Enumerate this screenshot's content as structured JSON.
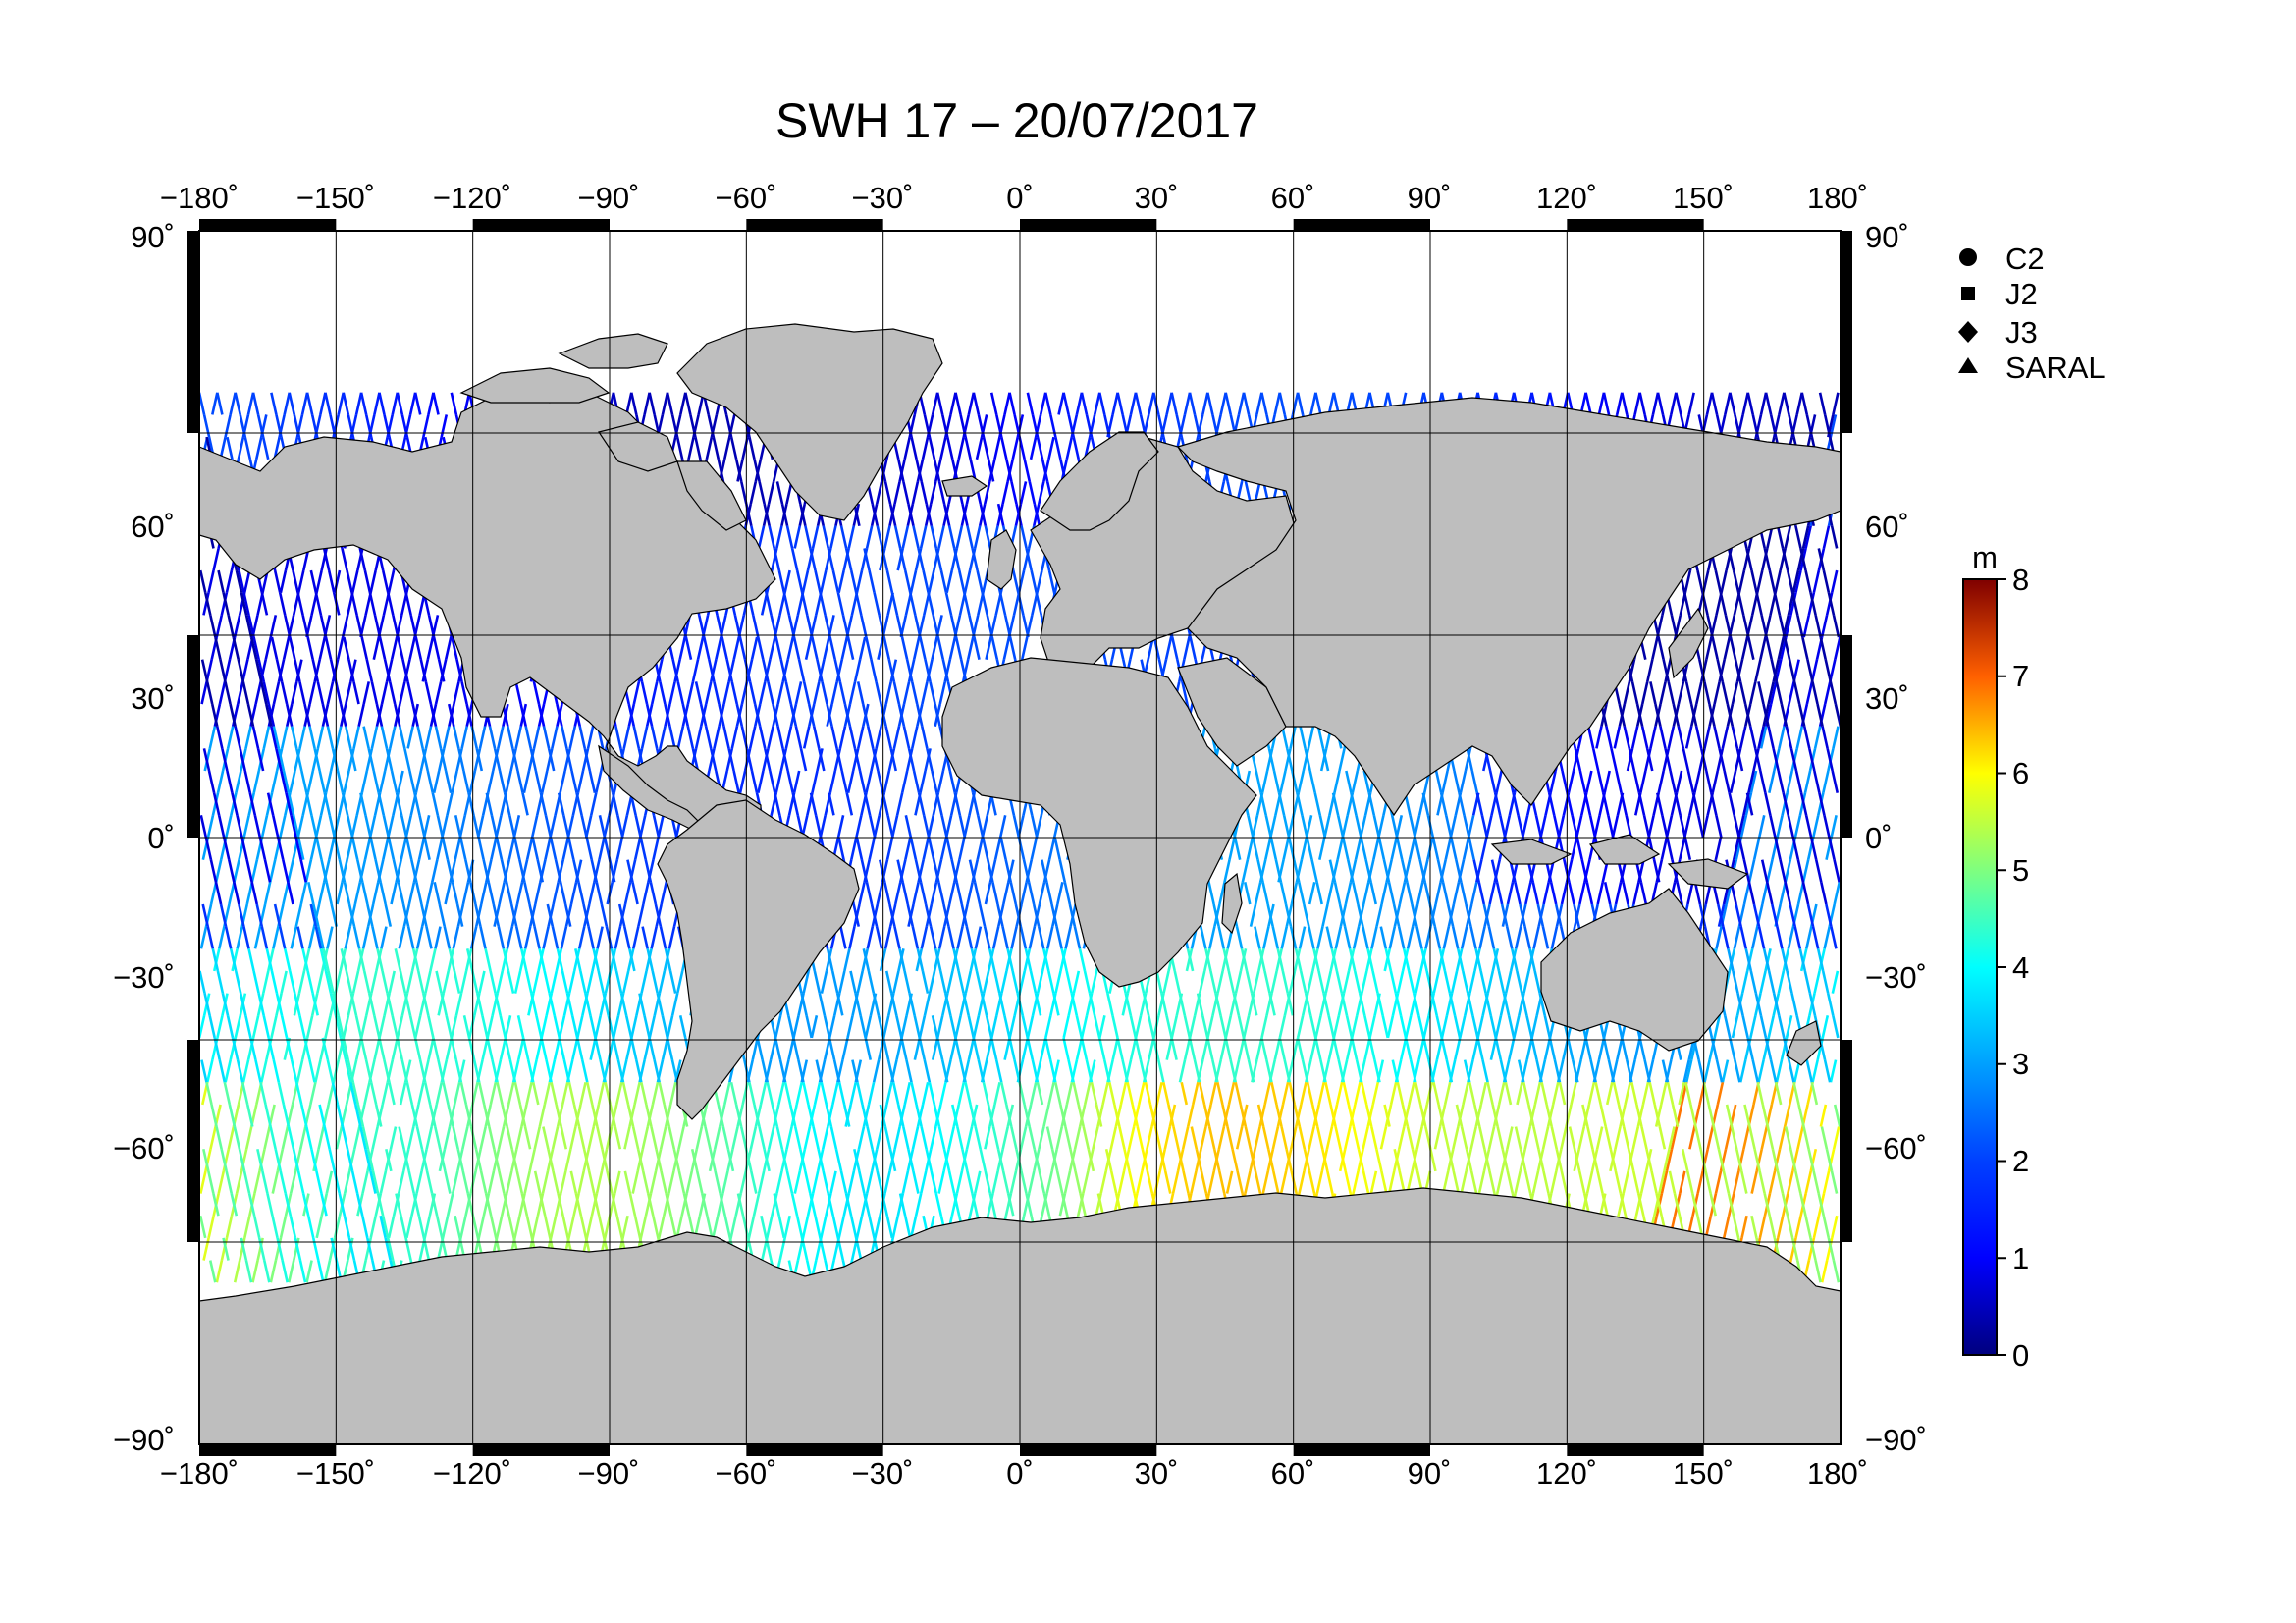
{
  "title": "SWH 17 – 20/07/2017",
  "map": {
    "lon_ticks": [
      "−180˚",
      "−150˚",
      "−120˚",
      "−90˚",
      "−60˚",
      "−30˚",
      "0˚",
      "30˚",
      "60˚",
      "90˚",
      "120˚",
      "150˚",
      "180˚"
    ],
    "lat_ticks": [
      "90˚",
      "60˚",
      "30˚",
      "0˚",
      "−30˚",
      "−60˚",
      "−90˚"
    ],
    "lon_range": [
      -180,
      180
    ],
    "lat_range": [
      -90,
      90
    ],
    "grid": true,
    "land_color": "#bebebe",
    "ocean_color": "#ffffff"
  },
  "legend": {
    "items": [
      {
        "symbol": "circle",
        "label": "C2"
      },
      {
        "symbol": "square",
        "label": "J2"
      },
      {
        "symbol": "diamond",
        "label": "J3"
      },
      {
        "symbol": "triangle",
        "label": "SARAL"
      }
    ]
  },
  "colorbar": {
    "unit": "m",
    "min": 0,
    "max": 8,
    "ticks": [
      "0",
      "1",
      "2",
      "3",
      "4",
      "5",
      "6",
      "7",
      "8"
    ],
    "colors": [
      "#00007f",
      "#0000ff",
      "#007fff",
      "#00ffff",
      "#7fff7f",
      "#ffff00",
      "#ff7f00",
      "#ff0000",
      "#7f0000"
    ]
  },
  "chart_data": {
    "type": "map",
    "variable": "SWH",
    "unit": "m",
    "value_range": [
      0,
      8
    ]
  }
}
